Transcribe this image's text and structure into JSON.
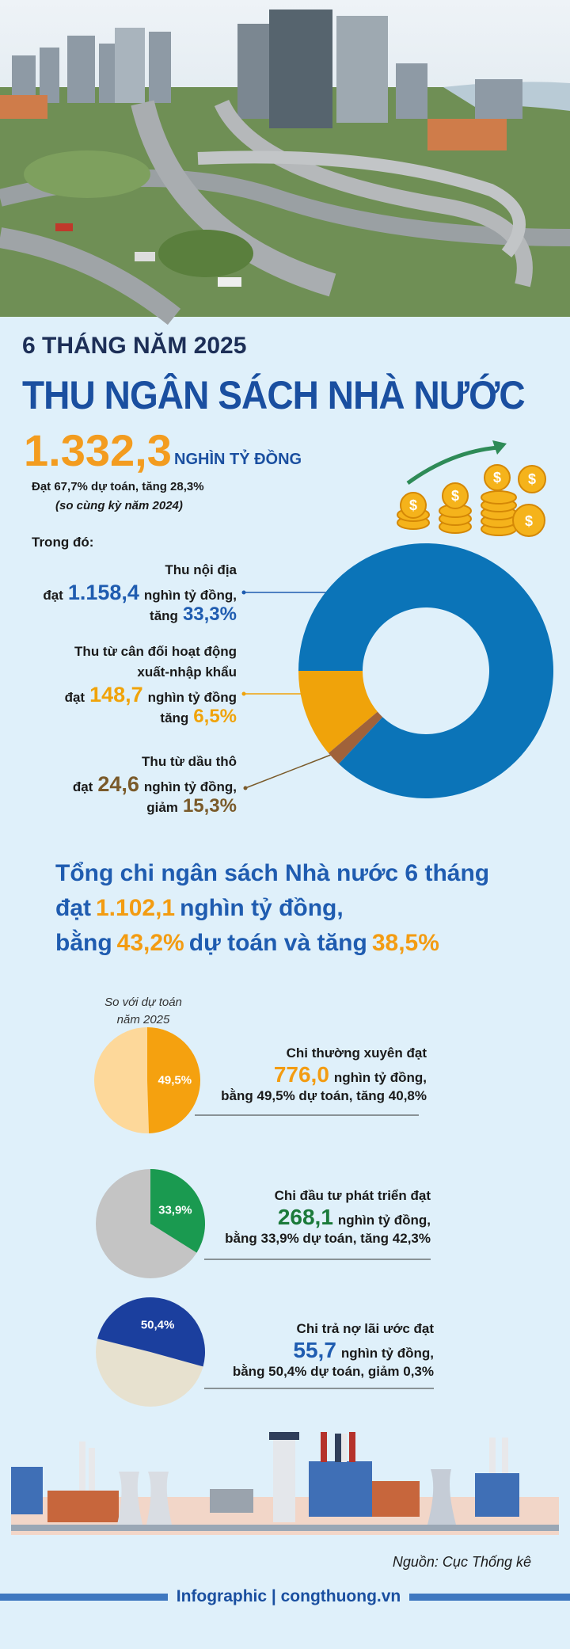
{
  "header": {
    "period": "6 THÁNG NĂM 2025",
    "title": "THU NGÂN SÁCH NHÀ NƯỚC"
  },
  "revenue": {
    "total": "1.332,3",
    "unit": "NGHÌN TỶ ĐỒNG",
    "note": "Đạt 67,7% dự toán, tăng 28,3%",
    "note2": "(so cùng kỳ năm 2024)",
    "breakdown_label": "Trong đó:",
    "items": [
      {
        "name_lines": [
          "Thu nội địa"
        ],
        "prefix": "đạt",
        "amount": "1.158,4",
        "value": 1158.4,
        "unit": "nghìn tỷ đồng,",
        "change_label": "tăng",
        "change": "33,3%",
        "color": "#0b74b8",
        "text_color": "#1f5cb0"
      },
      {
        "name_lines": [
          "Thu từ cân đối hoạt động",
          "xuất-nhập khẩu"
        ],
        "prefix": "đạt",
        "amount": "148,7",
        "value": 148.7,
        "unit": "nghìn tỷ đồng",
        "change_label": "tăng",
        "change": "6,5%",
        "color": "#f0a30a",
        "text_color": "#f0a30a"
      },
      {
        "name_lines": [
          "Thu từ dầu thô"
        ],
        "prefix": "đạt",
        "amount": "24,6",
        "value": 24.6,
        "unit": "nghìn tỷ đồng,",
        "change_label": "giảm",
        "change": "15,3%",
        "color": "#a0623a",
        "text_color": "#7a5a2a"
      }
    ]
  },
  "expenditure": {
    "headline": [
      [
        {
          "text": "Tổng chi ngân sách Nhà nước 6 tháng",
          "color": "#1f5cb0"
        }
      ],
      [
        {
          "text": "đạt",
          "color": "#1f5cb0"
        },
        {
          "text": "1.102,1",
          "color": "#f39c12"
        },
        {
          "text": "nghìn tỷ đồng,",
          "color": "#1f5cb0"
        }
      ],
      [
        {
          "text": "bằng",
          "color": "#1f5cb0"
        },
        {
          "text": "43,2%",
          "color": "#f39c12"
        },
        {
          "text": "dự toán và tăng",
          "color": "#1f5cb0"
        },
        {
          "text": "38,5%",
          "color": "#f39c12"
        }
      ]
    ],
    "pie_caption": [
      "So với dự toán",
      "năm 2025"
    ],
    "items": [
      {
        "label": "Chi thường xuyên đạt",
        "amount": "776,0",
        "unit": "nghìn tỷ đồng,",
        "detail": "bằng 49,5% dự toán, tăng 40,8%",
        "share": 49.5,
        "share_label": "49,5%",
        "color": "#f5a10f",
        "rest_color": "#fdd89a",
        "amount_color": "#f39c12"
      },
      {
        "label": "Chi đầu tư phát triển đạt",
        "amount": "268,1",
        "unit": "nghìn tỷ đồng,",
        "detail": "bằng 33,9% dự toán, tăng 42,3%",
        "share": 33.9,
        "share_label": "33,9%",
        "color": "#1a9a50",
        "rest_color": "#c4c4c4",
        "amount_color": "#1b7a3a"
      },
      {
        "label": "Chi trả nợ lãi ước đạt",
        "amount": "55,7",
        "unit": "nghìn tỷ đồng,",
        "detail": "bằng 50,4% dự toán, giảm 0,3%",
        "share": 50.4,
        "share_label": "50,4%",
        "color": "#1b3f9e",
        "rest_color": "#e7e1cf",
        "amount_color": "#1f5cb0"
      }
    ]
  },
  "source": "Nguồn: Cục Thống kê",
  "footer": "Infographic | congthuong.vn"
}
